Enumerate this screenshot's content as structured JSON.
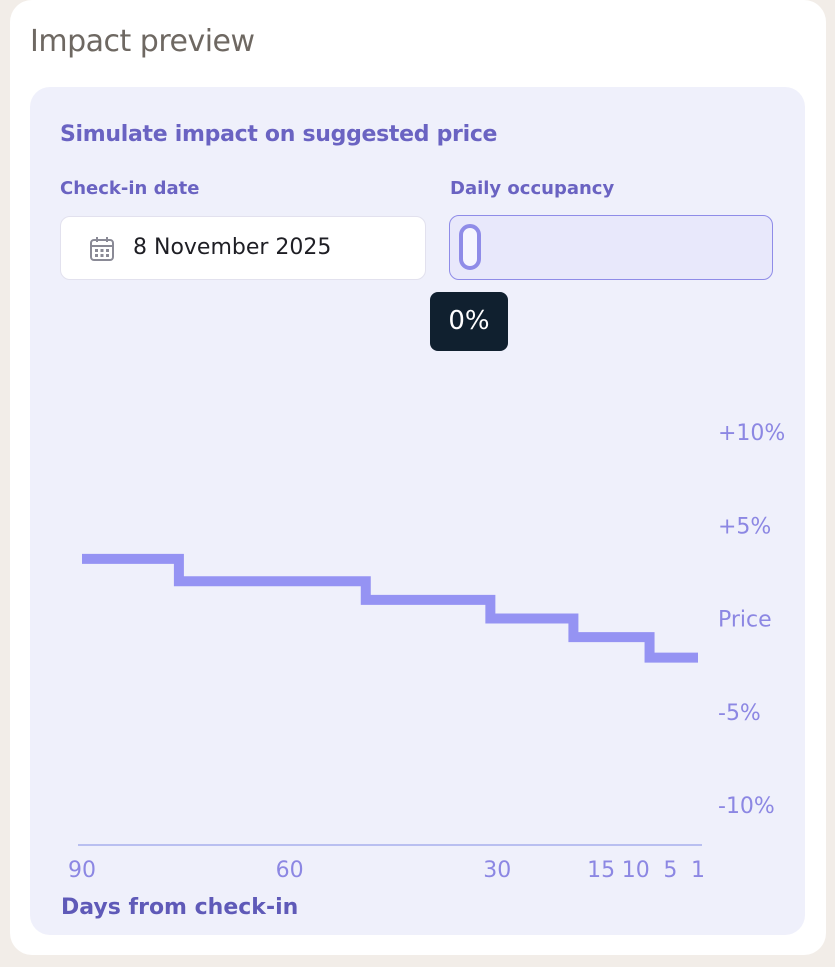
{
  "card": {
    "title": "Impact preview"
  },
  "simulator": {
    "title": "Simulate impact on suggested price",
    "checkin_label": "Check-in date",
    "checkin_value": "8 November 2025",
    "occupancy_label": "Daily occupancy",
    "occupancy_value": "0%",
    "occupancy_fraction": 0
  },
  "chart_data": {
    "type": "line",
    "line_style": "step",
    "xlabel": "Days from check-in",
    "ylabel": "",
    "x_ticks": [
      90,
      60,
      30,
      15,
      10,
      5,
      1
    ],
    "y_ticks": [
      "+10%",
      "+5%",
      "Price",
      "-5%",
      "-10%"
    ],
    "y_tick_values": [
      10,
      5,
      0,
      -5,
      -10
    ],
    "xlim": [
      90,
      1
    ],
    "ylim": [
      -10,
      10
    ],
    "series": [
      {
        "values": [
          {
            "x_start": 90,
            "x_end": 76,
            "y": 3.2
          },
          {
            "x_start": 76,
            "x_end": 49,
            "y": 2.0
          },
          {
            "x_start": 49,
            "x_end": 31,
            "y": 1.0
          },
          {
            "x_start": 31,
            "x_end": 19,
            "y": 0.0
          },
          {
            "x_start": 19,
            "x_end": 8,
            "y": -1.0
          },
          {
            "x_start": 8,
            "x_end": 1,
            "y": -2.1
          }
        ]
      }
    ],
    "colors": {
      "line": "#9593f3",
      "axis": "#b9bff0",
      "labels": "#8c87e3"
    }
  }
}
